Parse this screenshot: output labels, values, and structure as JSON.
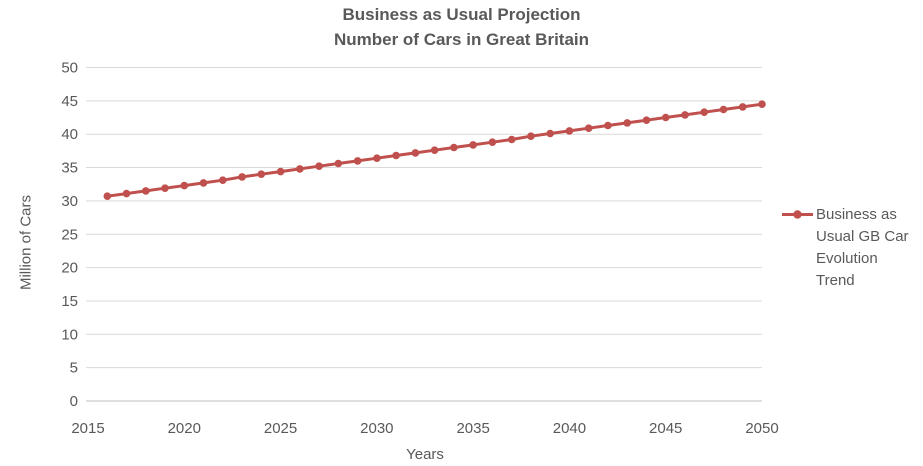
{
  "title": {
    "line1": "Business as Usual Projection",
    "line2": "Number of Cars in Great Britain"
  },
  "axes": {
    "x_label": "Years",
    "y_label": "Million of Cars"
  },
  "legend": {
    "label": "Business as Usual GB Car Evolution Trend"
  },
  "colors": {
    "series": "#C0504D",
    "text": "#595959",
    "gridline": "#D9D9D9",
    "axis_line": "#BFBFBF",
    "background": "#FFFFFF"
  },
  "chart_data": {
    "type": "line",
    "title": "Business as Usual Projection - Number of Cars in Great Britain",
    "xlabel": "Years",
    "ylabel": "Million of Cars",
    "xlim": [
      2015,
      2050
    ],
    "ylim": [
      0,
      50
    ],
    "xticks": [
      2015,
      2020,
      2025,
      2030,
      2035,
      2040,
      2045,
      2050
    ],
    "yticks": [
      0,
      5,
      10,
      15,
      20,
      25,
      30,
      35,
      40,
      45,
      50
    ],
    "grid": "horizontal",
    "legend_position": "right",
    "marker": "circle",
    "series": [
      {
        "name": "Business as Usual GB Car Evolution Trend",
        "color": "#C0504D",
        "x": [
          2016,
          2017,
          2018,
          2019,
          2020,
          2021,
          2022,
          2023,
          2024,
          2025,
          2026,
          2027,
          2028,
          2029,
          2030,
          2031,
          2032,
          2033,
          2034,
          2035,
          2036,
          2037,
          2038,
          2039,
          2040,
          2041,
          2042,
          2043,
          2044,
          2045,
          2046,
          2047,
          2048,
          2049,
          2050
        ],
        "y": [
          30.7,
          31.1,
          31.5,
          31.9,
          32.3,
          32.7,
          33.1,
          33.6,
          34.0,
          34.4,
          34.8,
          35.2,
          35.6,
          36.0,
          36.4,
          36.8,
          37.2,
          37.6,
          38.0,
          38.4,
          38.8,
          39.2,
          39.7,
          40.1,
          40.5,
          40.9,
          41.3,
          41.7,
          42.1,
          42.5,
          42.9,
          43.3,
          43.7,
          44.1,
          44.5
        ]
      }
    ]
  }
}
